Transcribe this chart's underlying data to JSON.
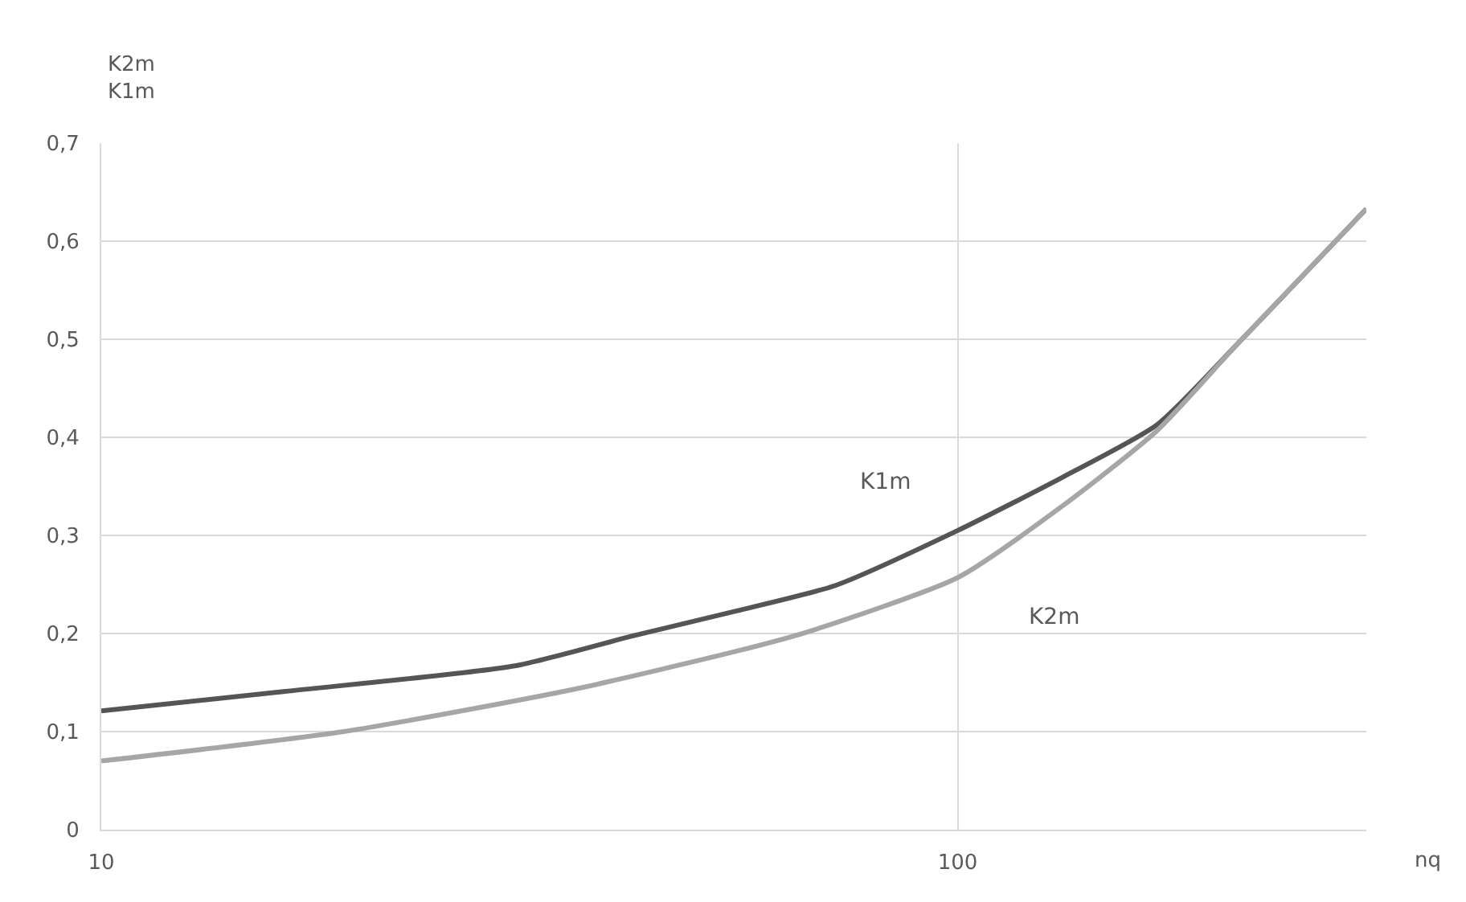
{
  "chart_data": {
    "type": "line",
    "ylabel": "K2m\nK1m",
    "xlabel": "nq",
    "log": "x",
    "grid": true,
    "legend": false,
    "marker": "none",
    "line_style": "solid",
    "xlim": [
      10,
      300
    ],
    "xticks": [
      10,
      100
    ],
    "ylim": [
      0,
      0.7
    ],
    "yticks": [
      0,
      {
        "value": 0.1,
        "label": "0,1"
      },
      {
        "value": 0.2,
        "label": "0,2"
      },
      {
        "value": 0.3,
        "label": "0,3"
      },
      {
        "value": 0.4,
        "label": "0,4"
      },
      {
        "value": 0.5,
        "label": "0,5"
      },
      {
        "value": 0.6,
        "label": "0,6"
      },
      {
        "value": 0.7,
        "label": "0,7"
      }
    ],
    "series": [
      {
        "name": "K1m",
        "color": "#555555",
        "x": [
          10,
          16.4,
          30.4,
          41.5,
          55.2,
          72,
          100,
          133,
          171,
          212,
          300
        ],
        "values": [
          0.121,
          0.141,
          0.167,
          0.197,
          0.223,
          0.249,
          0.305,
          0.36,
          0.413,
          0.495,
          0.633
        ]
      },
      {
        "name": "K2m",
        "color": "#a6a6a6",
        "x": [
          10,
          19.2,
          35.6,
          55.2,
          67,
          100,
          133,
          171,
          212,
          300
        ],
        "values": [
          0.07,
          0.1,
          0.143,
          0.182,
          0.202,
          0.257,
          0.331,
          0.407,
          0.495,
          0.633
        ]
      }
    ]
  }
}
